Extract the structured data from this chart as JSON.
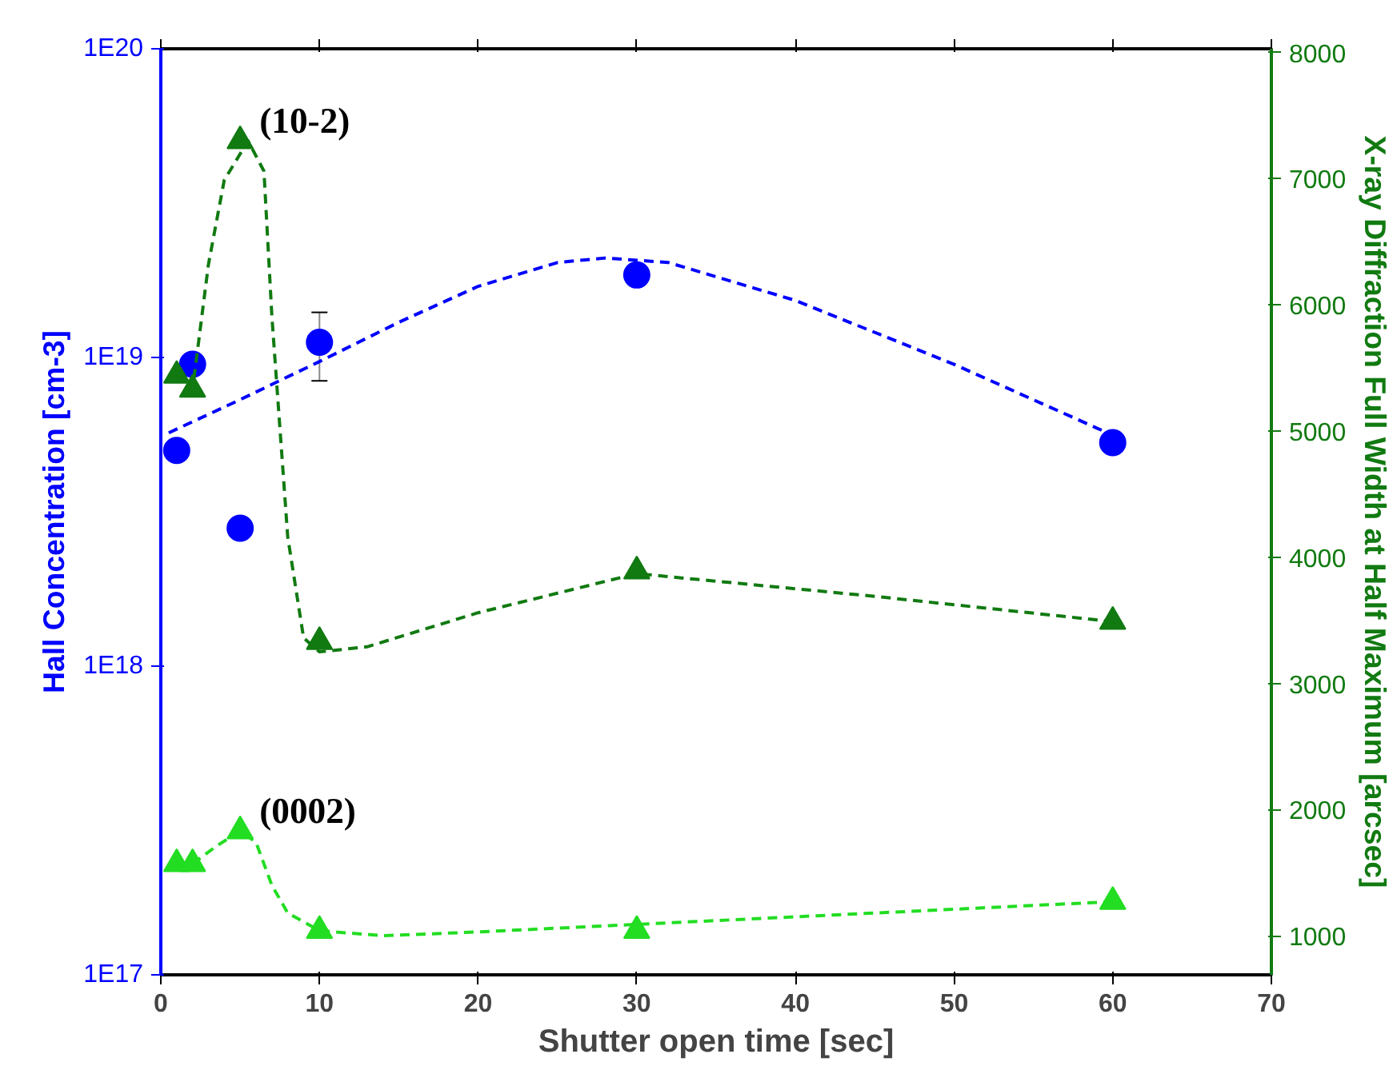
{
  "chart_data": {
    "type": "scatter",
    "xlabel": "Shutter open time [sec]",
    "ylabel": "Hall Concentration [cm-3]",
    "y2label": "X-ray Diffraction Full Width at Half Maximum [arcsec]",
    "xlim": [
      0,
      70
    ],
    "xticks": [
      0,
      10,
      20,
      30,
      40,
      50,
      60,
      70
    ],
    "ylim": [
      1e+17,
      1e+20
    ],
    "yticks": [
      {
        "value": 1e+17,
        "label": "1E17"
      },
      {
        "value": 1e+18,
        "label": "1E18"
      },
      {
        "value": 1e+19,
        "label": "1E19"
      },
      {
        "value": 1e+20,
        "label": "1E20"
      }
    ],
    "log": "y",
    "y2lim": [
      690,
      8030
    ],
    "y2ticks": [
      1000,
      2000,
      3000,
      4000,
      5000,
      6000,
      7000,
      8000
    ],
    "grid": false,
    "series": [
      {
        "marker": "circle",
        "color": "#0000ff",
        "x": [
          1,
          2,
          5,
          10,
          30,
          60
        ],
        "values": [
          5e+18,
          9.5e+18,
          2.8e+18,
          1.12e+19,
          1.85e+19,
          5.3e+18
        ],
        "errors": [
          null,
          null,
          null,
          [
            8.4e+18,
            1.4e+19
          ],
          null,
          null
        ]
      },
      {
        "type": "line",
        "line_style": "dashed",
        "marker": "none",
        "color": "#0000ff",
        "x": [
          0.5,
          5,
          10,
          15,
          20,
          25,
          28,
          32,
          40,
          50,
          60
        ],
        "values": [
          5.7e+18,
          7.3e+18,
          9.7e+18,
          1.3e+19,
          1.7e+19,
          2.03e+19,
          2.1e+19,
          2.03e+19,
          1.53e+19,
          9.5e+18,
          5.6e+18
        ]
      },
      {
        "marker": "triangle",
        "name": "(10-2)",
        "axis": "y2",
        "color": "#117a11",
        "x": [
          1,
          2,
          5,
          10,
          30,
          60
        ],
        "values": [
          5440,
          5330,
          7300,
          3330,
          3890,
          3490
        ]
      },
      {
        "type": "line",
        "line_style": "dashed",
        "marker": "none",
        "axis": "y2",
        "color": "#117a11",
        "x": [
          1,
          2,
          3,
          4,
          5.5,
          6.5,
          7,
          8,
          9,
          10,
          13,
          20,
          30,
          45,
          60
        ],
        "values": [
          5440,
          5330,
          6320,
          6990,
          7300,
          7060,
          5910,
          4160,
          3360,
          3250,
          3290,
          3560,
          3870,
          3690,
          3490
        ]
      },
      {
        "marker": "triangle",
        "name": "(0002)",
        "axis": "y2",
        "color": "#22dd22",
        "x": [
          1,
          2,
          5,
          10,
          30,
          60
        ],
        "values": [
          1570,
          1570,
          1830,
          1040,
          1040,
          1270
        ]
      },
      {
        "type": "line",
        "line_style": "dashed",
        "marker": "none",
        "axis": "y2",
        "color": "#22dd22",
        "x": [
          1,
          2,
          3.5,
          5,
          6,
          7,
          8,
          10,
          14,
          20,
          30,
          45,
          60
        ],
        "values": [
          1570,
          1570,
          1710,
          1830,
          1740,
          1400,
          1180,
          1040,
          1000,
          1030,
          1090,
          1180,
          1270
        ]
      }
    ]
  }
}
